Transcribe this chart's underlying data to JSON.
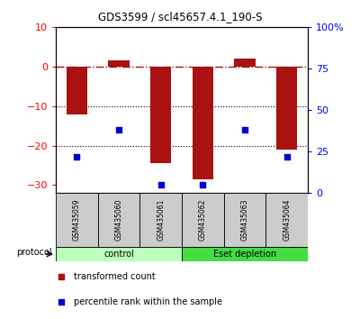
{
  "title": "GDS3599 / scl45657.4.1_190-S",
  "categories": [
    "GSM435059",
    "GSM435060",
    "GSM435061",
    "GSM435062",
    "GSM435063",
    "GSM435064"
  ],
  "bar_values": [
    -12.0,
    1.5,
    -24.5,
    -28.5,
    2.0,
    -21.0
  ],
  "dot_pct": [
    22,
    38,
    5,
    5,
    38,
    22
  ],
  "bar_color": "#aa1111",
  "dot_color": "#0000cc",
  "ylim_left": [
    -32,
    10
  ],
  "ylim_right": [
    0,
    100
  ],
  "yticks_left": [
    10,
    0,
    -10,
    -20,
    -30
  ],
  "yticks_right": [
    100,
    75,
    50,
    25,
    0
  ],
  "yticklabels_right": [
    "100%",
    "75",
    "50",
    "25",
    "0"
  ],
  "dotted_lines": [
    -10,
    -20
  ],
  "group1_label": "control",
  "group2_label": "Eset depletion",
  "group1_color": "#bbffbb",
  "group2_color": "#44dd44",
  "legend1_label": "transformed count",
  "legend2_label": "percentile rank within the sample"
}
